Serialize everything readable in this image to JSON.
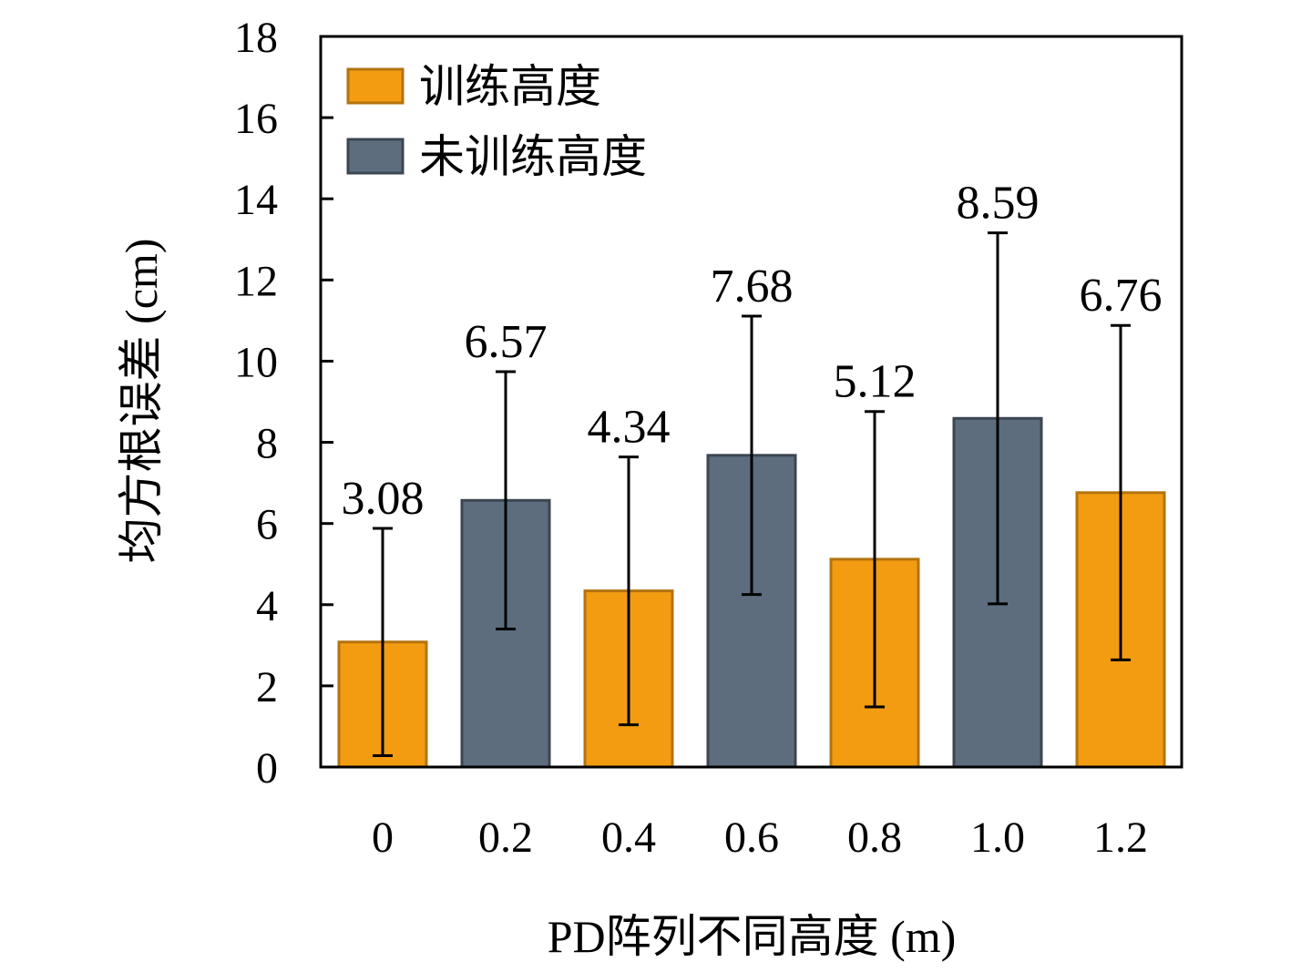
{
  "chart_data": {
    "type": "bar",
    "title": "",
    "xlabel": "PD阵列不同高度 (m)",
    "ylabel": "均方根误差 (cm)",
    "categories": [
      "0",
      "0.2",
      "0.4",
      "0.6",
      "0.8",
      "1.0",
      "1.2"
    ],
    "values": [
      3.08,
      6.57,
      4.34,
      7.68,
      5.12,
      8.59,
      6.76
    ],
    "data_labels": [
      "3.08",
      "6.57",
      "4.34",
      "7.68",
      "5.12",
      "8.59",
      "6.76"
    ],
    "error": [
      2.8,
      3.17,
      3.3,
      3.43,
      3.64,
      4.57,
      4.12
    ],
    "group": [
      "trained",
      "untrained",
      "trained",
      "untrained",
      "trained",
      "untrained",
      "trained"
    ],
    "series": [
      {
        "key": "trained",
        "name": "训练高度",
        "color": "#F39C12",
        "edge": "#B3730D"
      },
      {
        "key": "untrained",
        "name": "未训练高度",
        "color": "#5D6D7E",
        "edge": "#3B4652"
      }
    ],
    "ylim": [
      0,
      18
    ],
    "yticks": [
      "0",
      "2",
      "4",
      "6",
      "8",
      "10",
      "12",
      "14",
      "16",
      "18"
    ],
    "grid": false,
    "legend": "top-left"
  }
}
